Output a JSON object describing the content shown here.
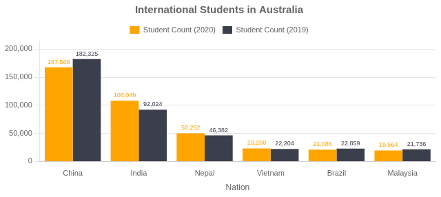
{
  "chart_data": {
    "type": "bar",
    "title": "International Students in Australia",
    "x_label": "Nation",
    "categories": [
      "China",
      "India",
      "Nepal",
      "Vietnam",
      "Brazil",
      "Malaysia"
    ],
    "series": [
      {
        "name": "Student Count (2020)",
        "color": "#FFA500",
        "values": [
          167568,
          108049,
          50252,
          23268,
          21086,
          19564
        ],
        "value_labels": [
          "167,568",
          "108,049",
          "50,252",
          "23,268",
          "21,086",
          "19,564"
        ]
      },
      {
        "name": "Student Count (2019)",
        "color": "#3B3F4C",
        "values": [
          182325,
          92024,
          46382,
          22204,
          22859,
          21736
        ],
        "value_labels": [
          "182,325",
          "92,024",
          "46,382",
          "22,204",
          "22,859",
          "21,736"
        ]
      }
    ],
    "ylim": [
      0,
      215000
    ],
    "yticks": [
      0,
      {
        "value": 50000,
        "label": "50,000"
      },
      {
        "value": 100000,
        "label": "100,000"
      },
      {
        "value": 150000,
        "label": "150,000"
      },
      {
        "value": 200000,
        "label": "200,000"
      }
    ],
    "grid": true,
    "legend": "top",
    "data_labels": true
  }
}
